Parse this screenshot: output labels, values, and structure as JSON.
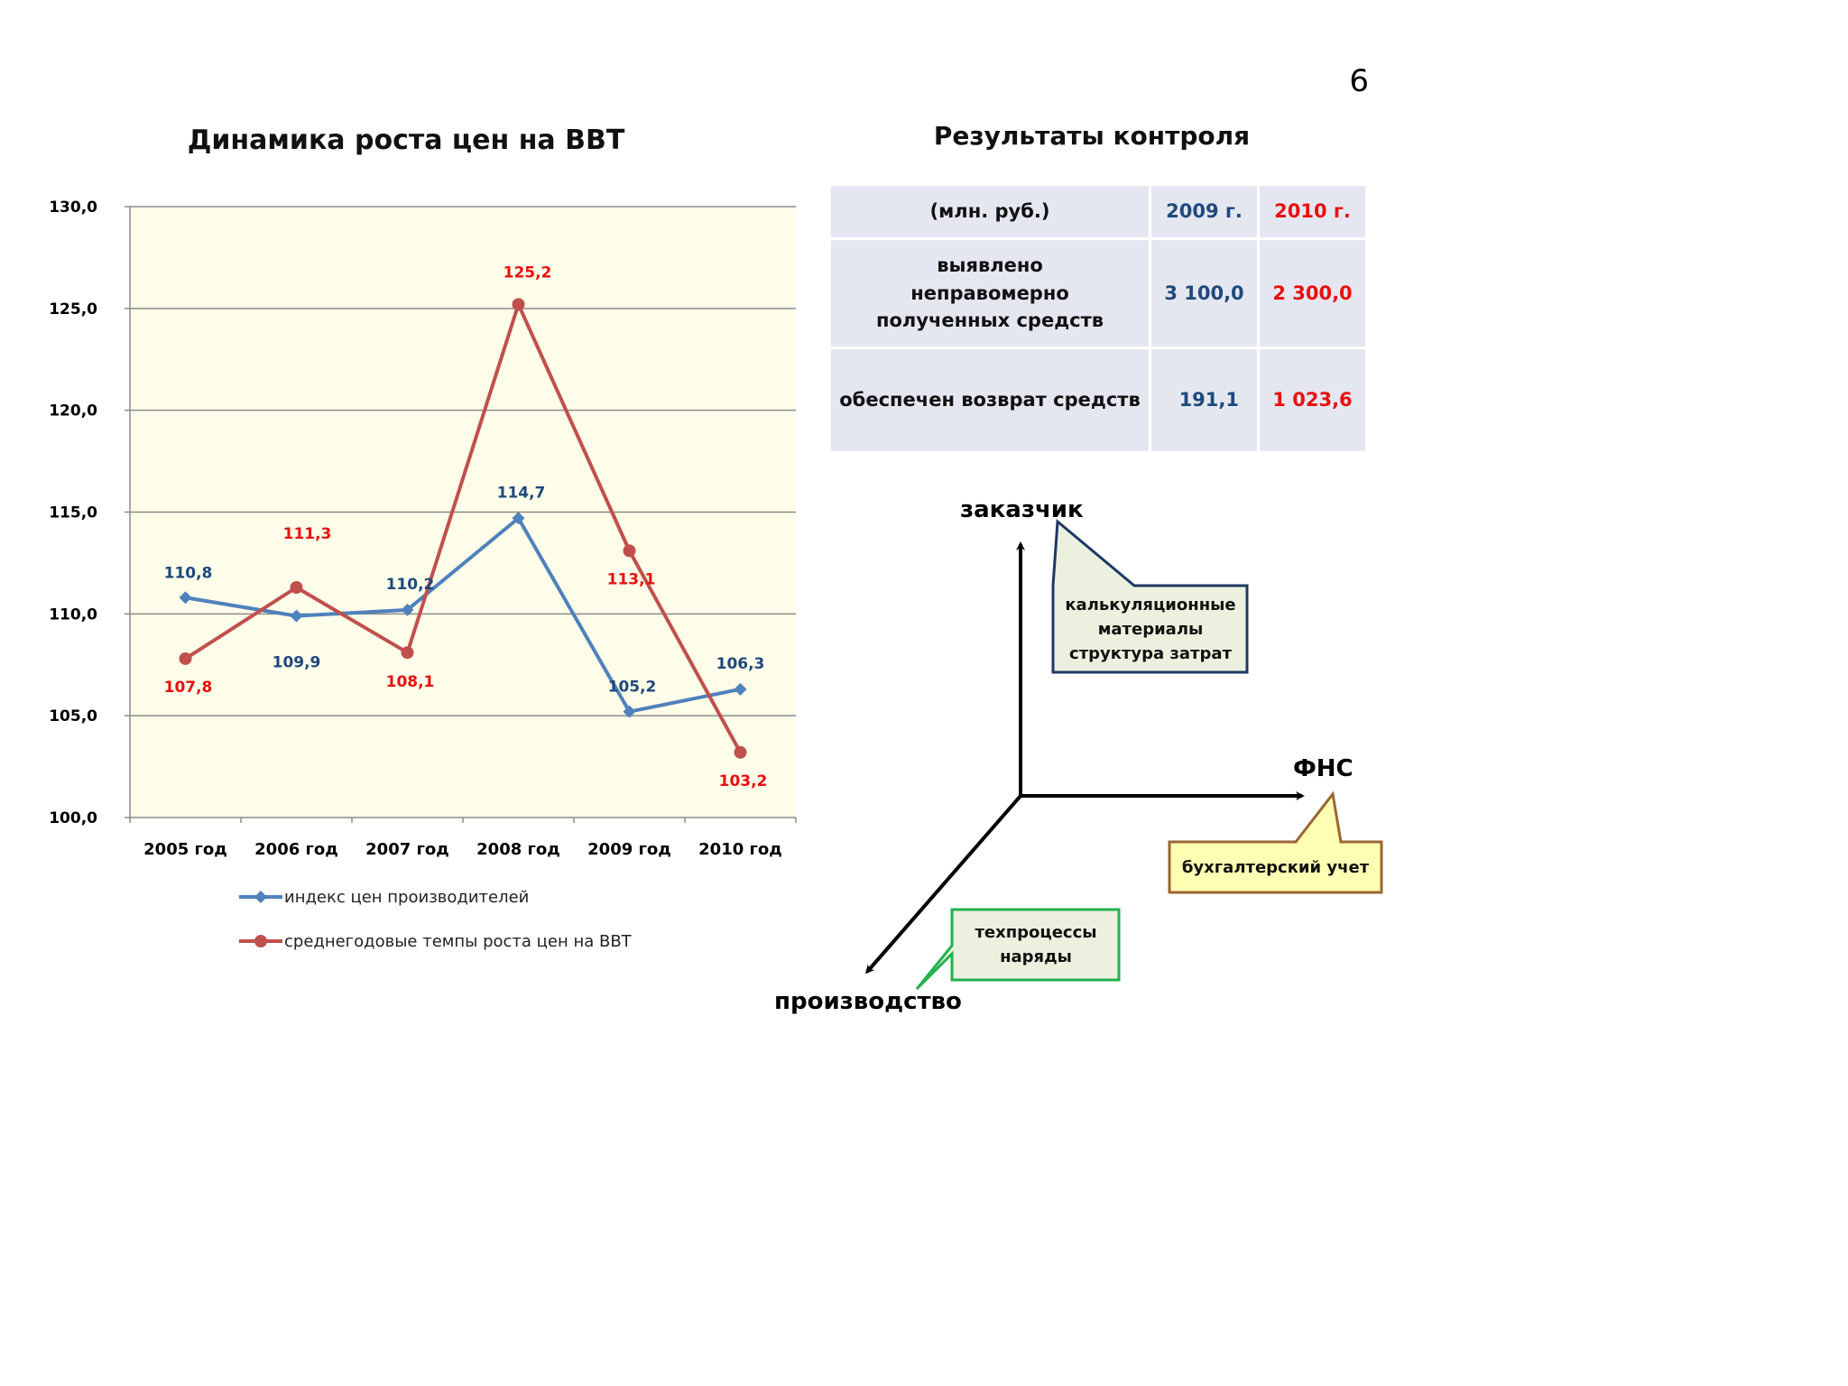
{
  "page_number": "6",
  "chart_title": "Динамика роста цен на ВВТ",
  "results_title": "Результаты контроля",
  "chart_data": {
    "type": "line",
    "title": "Динамика роста цен на ВВТ",
    "categories": [
      "2005 год",
      "2006 год",
      "2007 год",
      "2008 год",
      "2009 год",
      "2010 год"
    ],
    "ylim": [
      100,
      130
    ],
    "yticks": [
      "100,0",
      "105,0",
      "110,0",
      "115,0",
      "120,0",
      "125,0",
      "130,0"
    ],
    "grid": true,
    "legend_position": "bottom",
    "series": [
      {
        "name": "индекс цен производителей",
        "color": "#4f81bd",
        "label_color": "#1f497d",
        "marker": "diamond",
        "values": [
          110.8,
          109.9,
          110.2,
          114.7,
          105.2,
          106.3
        ],
        "labels": [
          "110,8",
          "109,9",
          "110,2",
          "114,7",
          "105,2",
          "106,3"
        ]
      },
      {
        "name": "среднегодовые темпы роста цен на ВВТ",
        "color": "#c0504d",
        "label_color": "#e8100f",
        "marker": "circle",
        "values": [
          107.8,
          111.3,
          108.1,
          125.2,
          113.1,
          103.2
        ],
        "labels": [
          "107,8",
          "111,3",
          "108,1",
          "125,2",
          "113,1",
          "103,2"
        ]
      }
    ]
  },
  "table": {
    "header": {
      "unit": "(млн. руб.)",
      "y2009": "2009 г.",
      "y2010": "2010 г."
    },
    "rows": [
      {
        "label": "выявлено неправомерно полученных средств",
        "v2009": "3 100,0",
        "v2010": "2 300,0"
      },
      {
        "label": "обеспечен возврат средств",
        "v2009": "191,1",
        "v2010": "1 023,6"
      }
    ]
  },
  "diagram": {
    "axes": {
      "customer": "заказчик",
      "fns": "ФНС",
      "production": "производство"
    },
    "callouts": {
      "customer_line1": "калькуляционные",
      "customer_line2": "материалы",
      "customer_line3": "структура затрат",
      "fns": "бухгалтерский учет",
      "production_line1": "техпроцессы",
      "production_line2": "наряды"
    },
    "colors": {
      "customer_box": "#1f3864",
      "fns_box": "#996633",
      "production_box": "#22b14c"
    }
  }
}
